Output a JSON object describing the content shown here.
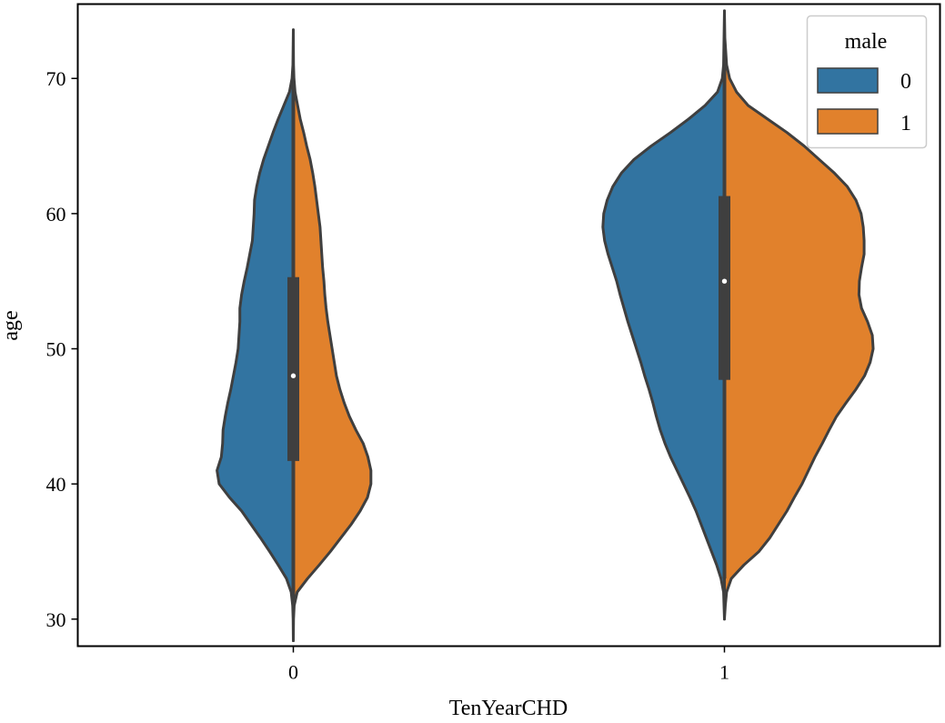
{
  "chart_data": {
    "type": "violin",
    "split": true,
    "xlabel": "TenYearCHD",
    "ylabel": "age",
    "categories": [
      "0",
      "1"
    ],
    "ylim": [
      28,
      75.5
    ],
    "yticks": [
      30,
      40,
      50,
      60,
      70
    ],
    "ytick_labels": [
      "30",
      "40",
      "50",
      "60",
      "70"
    ],
    "legend": {
      "title": "male",
      "position": "top-right",
      "entries": [
        {
          "label": "0",
          "color": "#3274a1"
        },
        {
          "label": "1",
          "color": "#e1812c"
        }
      ]
    },
    "colors": {
      "hue_0": "#3274a1",
      "hue_1": "#e1812c",
      "outline": "#3f3f3f"
    },
    "width_scale": 0.4,
    "groups": [
      {
        "category": "0",
        "box": {
          "whisker_low": 31.5,
          "q1": 41.7,
          "median": 48,
          "q3": 55.3,
          "whisker_high": 70.5
        },
        "halves": [
          {
            "hue": "0",
            "min": 28.4,
            "max": 73.6,
            "density": [
              [
                28.4,
                0.0
              ],
              [
                30,
                0.005
              ],
              [
                31,
                0.015
              ],
              [
                32,
                0.05
              ],
              [
                33,
                0.16
              ],
              [
                34,
                0.35
              ],
              [
                35,
                0.55
              ],
              [
                36,
                0.76
              ],
              [
                37,
                0.98
              ],
              [
                38,
                1.2
              ],
              [
                39,
                1.48
              ],
              [
                40,
                1.72
              ],
              [
                41,
                1.77
              ],
              [
                42,
                1.67
              ],
              [
                43,
                1.64
              ],
              [
                44,
                1.63
              ],
              [
                45,
                1.58
              ],
              [
                46,
                1.52
              ],
              [
                47,
                1.45
              ],
              [
                48,
                1.39
              ],
              [
                49,
                1.33
              ],
              [
                50,
                1.28
              ],
              [
                51,
                1.26
              ],
              [
                52,
                1.24
              ],
              [
                53,
                1.24
              ],
              [
                54,
                1.2
              ],
              [
                55,
                1.14
              ],
              [
                56,
                1.07
              ],
              [
                57,
                1.01
              ],
              [
                58,
                0.95
              ],
              [
                59,
                0.93
              ],
              [
                60,
                0.91
              ],
              [
                61,
                0.9
              ],
              [
                62,
                0.85
              ],
              [
                63,
                0.78
              ],
              [
                64,
                0.69
              ],
              [
                65,
                0.58
              ],
              [
                66,
                0.47
              ],
              [
                67,
                0.35
              ],
              [
                68,
                0.22
              ],
              [
                69,
                0.09
              ],
              [
                70,
                0.03
              ],
              [
                71,
                0.01
              ],
              [
                73.6,
                0.0
              ]
            ]
          },
          {
            "hue": "1",
            "min": 28.4,
            "max": 73.6,
            "density": [
              [
                28.4,
                0.0
              ],
              [
                30,
                0.005
              ],
              [
                31,
                0.02
              ],
              [
                32,
                0.09
              ],
              [
                33,
                0.33
              ],
              [
                34,
                0.6
              ],
              [
                35,
                0.86
              ],
              [
                36,
                1.1
              ],
              [
                37,
                1.34
              ],
              [
                38,
                1.55
              ],
              [
                39,
                1.72
              ],
              [
                40,
                1.8
              ],
              [
                41,
                1.8
              ],
              [
                42,
                1.73
              ],
              [
                43,
                1.62
              ],
              [
                44,
                1.45
              ],
              [
                45,
                1.3
              ],
              [
                46,
                1.18
              ],
              [
                47,
                1.08
              ],
              [
                48,
                1.0
              ],
              [
                49,
                0.95
              ],
              [
                50,
                0.9
              ],
              [
                51,
                0.85
              ],
              [
                52,
                0.8
              ],
              [
                53,
                0.76
              ],
              [
                54,
                0.73
              ],
              [
                55,
                0.71
              ],
              [
                56,
                0.68
              ],
              [
                57,
                0.66
              ],
              [
                58,
                0.64
              ],
              [
                59,
                0.62
              ],
              [
                60,
                0.58
              ],
              [
                61,
                0.54
              ],
              [
                62,
                0.5
              ],
              [
                63,
                0.45
              ],
              [
                64,
                0.39
              ],
              [
                65,
                0.31
              ],
              [
                66,
                0.24
              ],
              [
                67,
                0.16
              ],
              [
                68,
                0.1
              ],
              [
                69,
                0.04
              ],
              [
                70,
                0.015
              ],
              [
                71,
                0.005
              ],
              [
                73.6,
                0.0
              ]
            ]
          }
        ]
      },
      {
        "category": "1",
        "box": {
          "whisker_low": 33,
          "q1": 47.7,
          "median": 55,
          "q3": 61.3,
          "whisker_high": 71
        },
        "halves": [
          {
            "hue": "0",
            "min": 30,
            "max": 75,
            "density": [
              [
                30,
                0.0
              ],
              [
                32,
                0.02
              ],
              [
                33,
                0.08
              ],
              [
                34,
                0.18
              ],
              [
                35,
                0.3
              ],
              [
                36,
                0.42
              ],
              [
                37,
                0.54
              ],
              [
                38,
                0.66
              ],
              [
                39,
                0.8
              ],
              [
                40,
                0.95
              ],
              [
                41,
                1.1
              ],
              [
                42,
                1.25
              ],
              [
                43,
                1.38
              ],
              [
                44,
                1.49
              ],
              [
                45,
                1.58
              ],
              [
                46,
                1.66
              ],
              [
                47,
                1.75
              ],
              [
                48,
                1.85
              ],
              [
                49,
                1.94
              ],
              [
                50,
                2.04
              ],
              [
                51,
                2.14
              ],
              [
                52,
                2.24
              ],
              [
                53,
                2.33
              ],
              [
                54,
                2.42
              ],
              [
                55,
                2.5
              ],
              [
                56,
                2.6
              ],
              [
                57,
                2.7
              ],
              [
                58,
                2.78
              ],
              [
                59,
                2.82
              ],
              [
                60,
                2.8
              ],
              [
                61,
                2.72
              ],
              [
                62,
                2.59
              ],
              [
                63,
                2.39
              ],
              [
                64,
                2.1
              ],
              [
                65,
                1.7
              ],
              [
                66,
                1.25
              ],
              [
                67,
                0.83
              ],
              [
                68,
                0.45
              ],
              [
                69,
                0.16
              ],
              [
                70,
                0.05
              ],
              [
                71,
                0.02
              ],
              [
                73,
                0.01
              ],
              [
                75,
                0.0
              ]
            ]
          },
          {
            "hue": "1",
            "min": 30,
            "max": 75,
            "density": [
              [
                30,
                0.0
              ],
              [
                31,
                0.02
              ],
              [
                32,
                0.05
              ],
              [
                33,
                0.16
              ],
              [
                34,
                0.45
              ],
              [
                35,
                0.8
              ],
              [
                36,
                1.05
              ],
              [
                37,
                1.25
              ],
              [
                38,
                1.45
              ],
              [
                39,
                1.62
              ],
              [
                40,
                1.8
              ],
              [
                41,
                1.95
              ],
              [
                42,
                2.1
              ],
              [
                43,
                2.27
              ],
              [
                44,
                2.43
              ],
              [
                45,
                2.6
              ],
              [
                46,
                2.82
              ],
              [
                47,
                3.05
              ],
              [
                48,
                3.25
              ],
              [
                49,
                3.38
              ],
              [
                50,
                3.45
              ],
              [
                51,
                3.43
              ],
              [
                52,
                3.32
              ],
              [
                53,
                3.18
              ],
              [
                54,
                3.12
              ],
              [
                55,
                3.13
              ],
              [
                56,
                3.18
              ],
              [
                57,
                3.24
              ],
              [
                58,
                3.24
              ],
              [
                59,
                3.22
              ],
              [
                60,
                3.17
              ],
              [
                61,
                3.05
              ],
              [
                62,
                2.85
              ],
              [
                63,
                2.55
              ],
              [
                64,
                2.2
              ],
              [
                65,
                1.85
              ],
              [
                66,
                1.45
              ],
              [
                67,
                1.0
              ],
              [
                68,
                0.55
              ],
              [
                69,
                0.28
              ],
              [
                70,
                0.12
              ],
              [
                71,
                0.05
              ],
              [
                73,
                0.01
              ],
              [
                75,
                0.0
              ]
            ]
          }
        ]
      }
    ]
  }
}
